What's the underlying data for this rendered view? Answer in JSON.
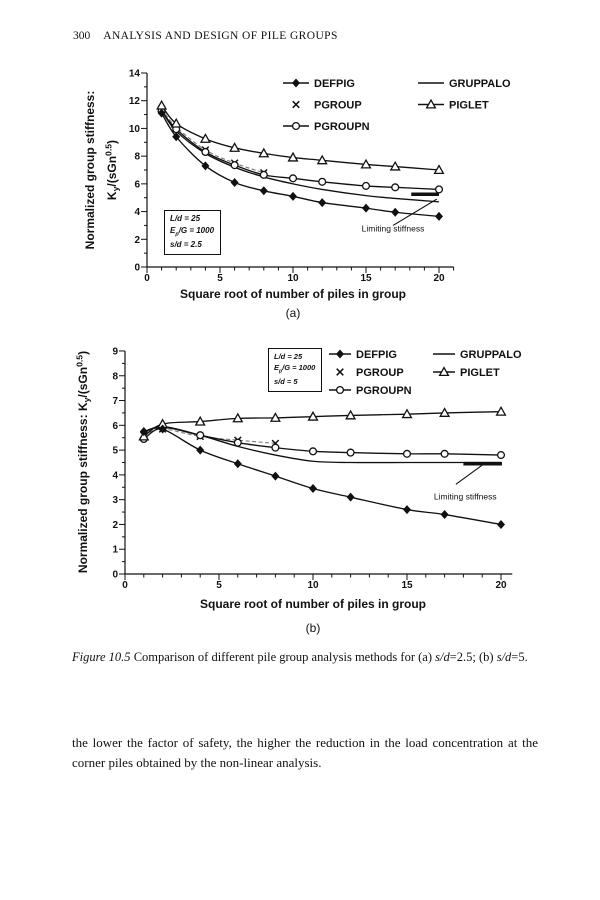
{
  "page": {
    "header": {
      "page_number": "300",
      "title": "ANALYSIS AND DESIGN OF PILE GROUPS"
    },
    "caption": {
      "parts": [
        {
          "text": "Figure 10.5",
          "italic": true
        },
        {
          "text": " Comparison of different pile group analysis methods for (a) ",
          "italic": false
        },
        {
          "text": "s/d",
          "italic": true
        },
        {
          "text": "=2.5; (b) ",
          "italic": false
        },
        {
          "text": "s/d",
          "italic": true
        },
        {
          "text": "=5.",
          "italic": false
        }
      ]
    },
    "body_text": "the lower the factor of safety, the higher the reduction in the load concentration at the corner piles obtained by the non-linear analysis."
  },
  "chart_data": [
    {
      "id": "a",
      "type": "line",
      "sublabel": "(a)",
      "xlabel": "Square root of number of piles in group",
      "ylabel_lines": [
        "Normalized group stiffness:",
        "K_{y}/(sGn^{0.5})"
      ],
      "xlim": [
        0,
        21
      ],
      "ylim": [
        0,
        14
      ],
      "xticks": [
        0,
        5,
        10,
        15,
        20
      ],
      "xminor_step": 1,
      "yticks": [
        0,
        2,
        4,
        6,
        8,
        10,
        12,
        14
      ],
      "yminor_step": 1,
      "grid": false,
      "legend_position": "top-right-inside",
      "params_box": [
        "L/d = 25",
        "E_{p}/G = 1000",
        "s/d = 2.5"
      ],
      "x": [
        1,
        2,
        4,
        6,
        8,
        10,
        12,
        15,
        17,
        20
      ],
      "series": [
        {
          "name": "DEFPIG",
          "marker": "diamond",
          "values": [
            11.1,
            9.4,
            7.3,
            6.1,
            5.5,
            5.1,
            4.65,
            4.25,
            3.95,
            3.65
          ]
        },
        {
          "name": "PGROUP",
          "marker": "x",
          "dashed": true,
          "x": [
            1,
            2,
            4,
            6,
            8
          ],
          "values": [
            11.4,
            10.1,
            8.45,
            7.5,
            6.8
          ]
        },
        {
          "name": "PGROUPN",
          "marker": "circle",
          "values": [
            11.25,
            9.95,
            8.3,
            7.35,
            6.65,
            6.4,
            6.15,
            5.85,
            5.75,
            5.6
          ]
        },
        {
          "name": "GRUPPALO",
          "marker": "none",
          "values": [
            11.3,
            9.8,
            8.2,
            7.2,
            6.5,
            6.0,
            5.6,
            5.15,
            4.95,
            4.7
          ]
        },
        {
          "name": "PIGLET",
          "marker": "triangle",
          "values": [
            11.65,
            10.35,
            9.25,
            8.6,
            8.2,
            7.9,
            7.7,
            7.4,
            7.25,
            7.0
          ]
        }
      ],
      "annotation": {
        "label": "Limiting stiffness",
        "bar": {
          "y": 5.25,
          "x1": 18.1,
          "x2": 20.0
        },
        "leader": [
          [
            16.85,
            3.0
          ],
          [
            19.85,
            4.9
          ]
        ],
        "text_at": [
          16.85,
          2.55
        ]
      }
    },
    {
      "id": "b",
      "type": "line",
      "sublabel": "(b)",
      "xlabel": "Square root of number of piles in group",
      "ylabel_lines": [
        "Normalized group stiffness: K_{y}/(sGn^{0.5})"
      ],
      "xlim": [
        0,
        20.6
      ],
      "ylim": [
        0,
        9
      ],
      "xticks": [
        0,
        5,
        10,
        15,
        20
      ],
      "xminor_step": 1,
      "yticks": [
        0,
        1,
        2,
        3,
        4,
        5,
        6,
        7,
        8,
        9
      ],
      "yminor_step": 0.5,
      "grid": false,
      "legend_position": "top-inside",
      "params_box": [
        "L/d = 25",
        "E_{p}/G = 1000",
        "s/d = 5"
      ],
      "x": [
        1,
        2,
        4,
        6,
        8,
        10,
        12,
        15,
        17,
        20
      ],
      "series": [
        {
          "name": "DEFPIG",
          "marker": "diamond",
          "values": [
            5.75,
            5.85,
            5.0,
            4.45,
            3.95,
            3.45,
            3.1,
            2.6,
            2.4,
            2.0
          ]
        },
        {
          "name": "PGROUP",
          "marker": "x",
          "dashed": true,
          "x": [
            1,
            2,
            4,
            6,
            8
          ],
          "values": [
            5.6,
            5.85,
            5.55,
            5.4,
            5.27
          ]
        },
        {
          "name": "PGROUPN",
          "marker": "circle",
          "values": [
            5.45,
            5.9,
            5.6,
            5.3,
            5.1,
            4.95,
            4.9,
            4.85,
            4.85,
            4.8
          ]
        },
        {
          "name": "GRUPPALO",
          "marker": "none",
          "values": [
            5.7,
            5.95,
            5.6,
            5.15,
            4.8,
            4.55,
            4.5,
            4.5,
            4.5,
            4.5
          ]
        },
        {
          "name": "PIGLET",
          "marker": "triangle",
          "values": [
            5.55,
            6.05,
            6.15,
            6.28,
            6.3,
            6.35,
            6.4,
            6.45,
            6.5,
            6.55
          ]
        }
      ],
      "annotation": {
        "label": "Limiting stiffness",
        "bar": {
          "y": 4.45,
          "x1": 18.0,
          "x2": 20.05
        },
        "leader": [
          [
            17.6,
            3.62
          ],
          [
            19.05,
            4.42
          ]
        ],
        "text_at": [
          18.1,
          3.0
        ]
      }
    }
  ]
}
